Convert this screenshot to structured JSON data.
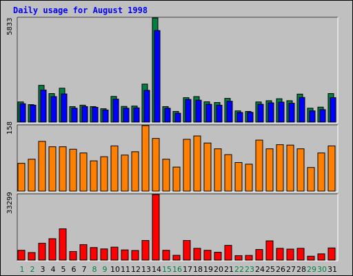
{
  "title": "Daily usage for August 1998",
  "colors": {
    "background": "#c0c0c0",
    "plot_background": "#c0c0c0",
    "hits": "#008040",
    "files": "#0000ff",
    "sites": "#ff8000",
    "kbytes": "#ff0000",
    "title": "#0000ff",
    "weekday_label": "#000000",
    "weekend_label": "#008040"
  },
  "chart_data": [
    {
      "type": "bar",
      "panel": "top",
      "max_label": "5833",
      "ylim": [
        0,
        5833
      ],
      "categories": [
        "1",
        "2",
        "3",
        "4",
        "5",
        "6",
        "7",
        "8",
        "9",
        "10",
        "11",
        "12",
        "13",
        "14",
        "15",
        "16",
        "17",
        "18",
        "19",
        "20",
        "21",
        "22",
        "23",
        "24",
        "25",
        "26",
        "27",
        "28",
        "29",
        "30",
        "31"
      ],
      "series": [
        {
          "name": "",
          "color": "#008040",
          "values": [
            1130,
            980,
            2060,
            1600,
            1900,
            870,
            950,
            870,
            750,
            1440,
            880,
            900,
            2130,
            5833,
            870,
            600,
            1370,
            1430,
            1140,
            1100,
            1330,
            630,
            600,
            1130,
            1200,
            1310,
            1200,
            1570,
            780,
            840,
            1600
          ]
        },
        {
          "name": "",
          "color": "#0000ff",
          "values": [
            1030,
            950,
            1800,
            1430,
            1580,
            780,
            870,
            830,
            680,
            1290,
            780,
            800,
            1780,
            5130,
            780,
            500,
            1270,
            1230,
            1000,
            950,
            1170,
            540,
            550,
            1000,
            1080,
            1120,
            1060,
            1380,
            630,
            700,
            1370
          ]
        }
      ]
    },
    {
      "type": "bar",
      "panel": "middle",
      "max_label": "158",
      "ylim": [
        0,
        158
      ],
      "categories": [
        "1",
        "2",
        "3",
        "4",
        "5",
        "6",
        "7",
        "8",
        "9",
        "10",
        "11",
        "12",
        "13",
        "14",
        "15",
        "16",
        "17",
        "18",
        "19",
        "20",
        "21",
        "22",
        "23",
        "24",
        "25",
        "26",
        "27",
        "28",
        "29",
        "30",
        "31"
      ],
      "series": [
        {
          "name": "",
          "color": "#ff8000",
          "values": [
            67,
            77,
            120,
            107,
            107,
            101,
            92,
            73,
            83,
            109,
            87,
            95,
            158,
            127,
            77,
            58,
            125,
            133,
            116,
            102,
            88,
            69,
            65,
            123,
            102,
            112,
            111,
            102,
            57,
            92,
            109
          ]
        }
      ]
    },
    {
      "type": "bar",
      "panel": "bottom",
      "max_label": "33299",
      "ylim": [
        0,
        33299
      ],
      "categories": [
        "1",
        "2",
        "3",
        "4",
        "5",
        "6",
        "7",
        "8",
        "9",
        "10",
        "11",
        "12",
        "13",
        "14",
        "15",
        "16",
        "17",
        "18",
        "19",
        "20",
        "21",
        "22",
        "23",
        "24",
        "25",
        "26",
        "27",
        "28",
        "29",
        "30",
        "31"
      ],
      "series": [
        {
          "name": "",
          "color": "#ff0000",
          "values": [
            5000,
            3850,
            8600,
            10900,
            15900,
            4400,
            7900,
            6400,
            5700,
            6600,
            5200,
            4900,
            10000,
            33299,
            5000,
            2450,
            10000,
            6000,
            5000,
            4000,
            7500,
            2300,
            2400,
            5400,
            9800,
            6000,
            5600,
            6000,
            2000,
            3200,
            6200
          ]
        }
      ]
    }
  ],
  "days": [
    {
      "label": "1",
      "weekend": true
    },
    {
      "label": "2",
      "weekend": true
    },
    {
      "label": "3",
      "weekend": false
    },
    {
      "label": "4",
      "weekend": false
    },
    {
      "label": "5",
      "weekend": false
    },
    {
      "label": "6",
      "weekend": false
    },
    {
      "label": "7",
      "weekend": false
    },
    {
      "label": "8",
      "weekend": true
    },
    {
      "label": "9",
      "weekend": true
    },
    {
      "label": "10",
      "weekend": false
    },
    {
      "label": "11",
      "weekend": false
    },
    {
      "label": "12",
      "weekend": false
    },
    {
      "label": "13",
      "weekend": false
    },
    {
      "label": "14",
      "weekend": false
    },
    {
      "label": "15",
      "weekend": true
    },
    {
      "label": "16",
      "weekend": true
    },
    {
      "label": "17",
      "weekend": false
    },
    {
      "label": "18",
      "weekend": false
    },
    {
      "label": "19",
      "weekend": false
    },
    {
      "label": "20",
      "weekend": false
    },
    {
      "label": "21",
      "weekend": false
    },
    {
      "label": "22",
      "weekend": true
    },
    {
      "label": "23",
      "weekend": true
    },
    {
      "label": "24",
      "weekend": false
    },
    {
      "label": "25",
      "weekend": false
    },
    {
      "label": "26",
      "weekend": false
    },
    {
      "label": "27",
      "weekend": false
    },
    {
      "label": "28",
      "weekend": false
    },
    {
      "label": "29",
      "weekend": true
    },
    {
      "label": "30",
      "weekend": true
    },
    {
      "label": "31",
      "weekend": false
    }
  ]
}
